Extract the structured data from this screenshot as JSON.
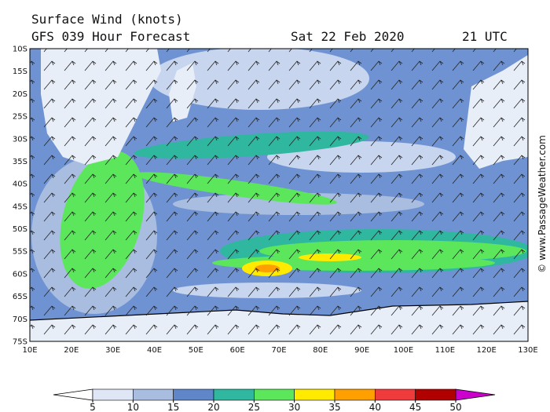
{
  "header": {
    "title": "Surface Wind (knots)",
    "subtitle": "GFS 039 Hour Forecast",
    "date": "Sat 22 Feb 2020",
    "time": "21 UTC"
  },
  "map": {
    "latitudes": [
      "10S",
      "15S",
      "20S",
      "25S",
      "30S",
      "35S",
      "40S",
      "45S",
      "50S",
      "55S",
      "60S",
      "65S",
      "70S",
      "75S"
    ],
    "longitudes": [
      "10E",
      "20E",
      "30E",
      "40E",
      "50E",
      "60E",
      "70E",
      "80E",
      "90E",
      "100E",
      "110E",
      "120E",
      "130E"
    ]
  },
  "colorbar": {
    "ticks": [
      5,
      10,
      15,
      20,
      25,
      30,
      35,
      40,
      45,
      50
    ],
    "colors": [
      "#ffffff",
      "#dfe6f5",
      "#a8bde0",
      "#5f86c8",
      "#2fb7a0",
      "#5ce65c",
      "#ffea00",
      "#ff9f00",
      "#ef3b3b",
      "#b00000",
      "#cc00cc"
    ]
  },
  "credit": "© www.PassageWeather.com"
}
